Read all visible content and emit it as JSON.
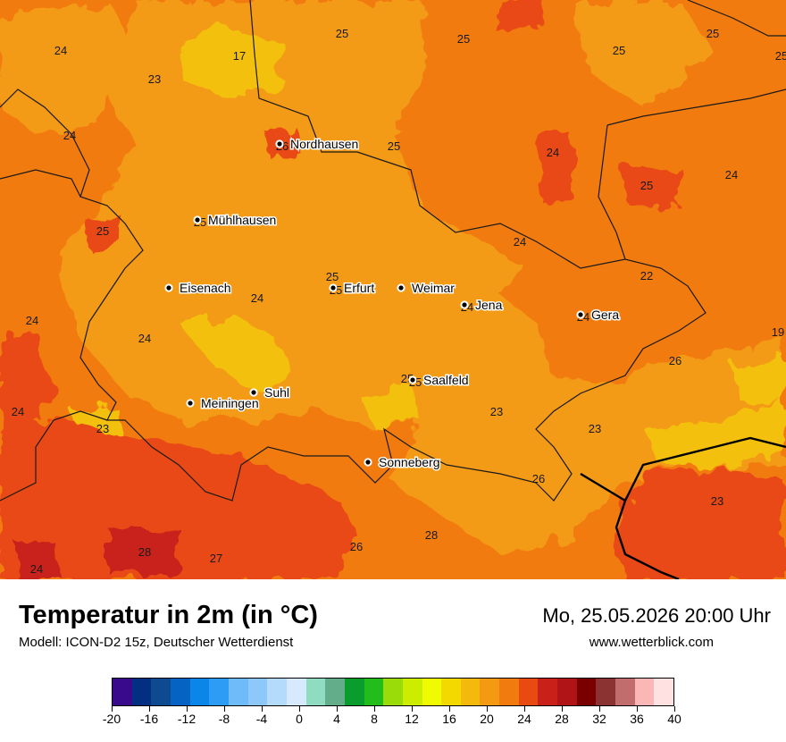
{
  "title": "Temperatur in 2m (in °C)",
  "model": "Modell: ICON-D2 15z, Deutscher Wetterdienst",
  "datetime": "Mo, 25.05.2026 20:00 Uhr",
  "website": "www.wetterblick.com",
  "colors": {
    "base": "#f27b10",
    "warmer": "#e84a12",
    "cooler": "#f39a12",
    "cool": "#f3c10b",
    "hot": "#c9201a",
    "border": "#1a1a1a"
  },
  "legend": {
    "colors": [
      "#3a0a8c",
      "#032f82",
      "#0d4a8f",
      "#0563c4",
      "#0a86e8",
      "#2d9cf5",
      "#6fbaf9",
      "#8ec8fb",
      "#b4dafc",
      "#d6e9fd",
      "#90dcc0",
      "#64ad8a",
      "#0b9c2e",
      "#22bd1a",
      "#99dc0a",
      "#ccec00",
      "#f0fa00",
      "#f3d900",
      "#f3ba0b",
      "#f39a12",
      "#f27b10",
      "#e84a12",
      "#c9201a",
      "#b01416",
      "#7a0000",
      "#8b3232",
      "#c26d6d",
      "#fbb6b6",
      "#ffe1e1"
    ],
    "ticks": [
      "-20",
      "-16",
      "-12",
      "-8",
      "-4",
      "0",
      "4",
      "8",
      "12",
      "16",
      "20",
      "24",
      "28",
      "32",
      "36",
      "40"
    ]
  },
  "cities": [
    {
      "name": "Nordhausen",
      "value": "26"
    },
    {
      "name": "Mühlhausen",
      "value": "25"
    },
    {
      "name": "Eisenach",
      "value": ""
    },
    {
      "name": "Erfurt",
      "value": "25"
    },
    {
      "name": "Weimar",
      "value": ""
    },
    {
      "name": "Jena",
      "value": "24"
    },
    {
      "name": "Gera",
      "value": "24"
    },
    {
      "name": "Suhl",
      "value": ""
    },
    {
      "name": "Meiningen",
      "value": ""
    },
    {
      "name": "Saalfeld",
      "value": "25"
    },
    {
      "name": "Sonneberg",
      "value": ""
    }
  ],
  "map_values": [
    "24",
    "23",
    "17",
    "25",
    "25",
    "25",
    "25",
    "25",
    "24",
    "25",
    "24",
    "25",
    "24",
    "25",
    "24",
    "22",
    "25",
    "24",
    "24",
    "24",
    "26",
    "19",
    "24",
    "23",
    "23",
    "23",
    "26",
    "23",
    "26",
    "28",
    "27",
    "28",
    "24",
    "25"
  ]
}
